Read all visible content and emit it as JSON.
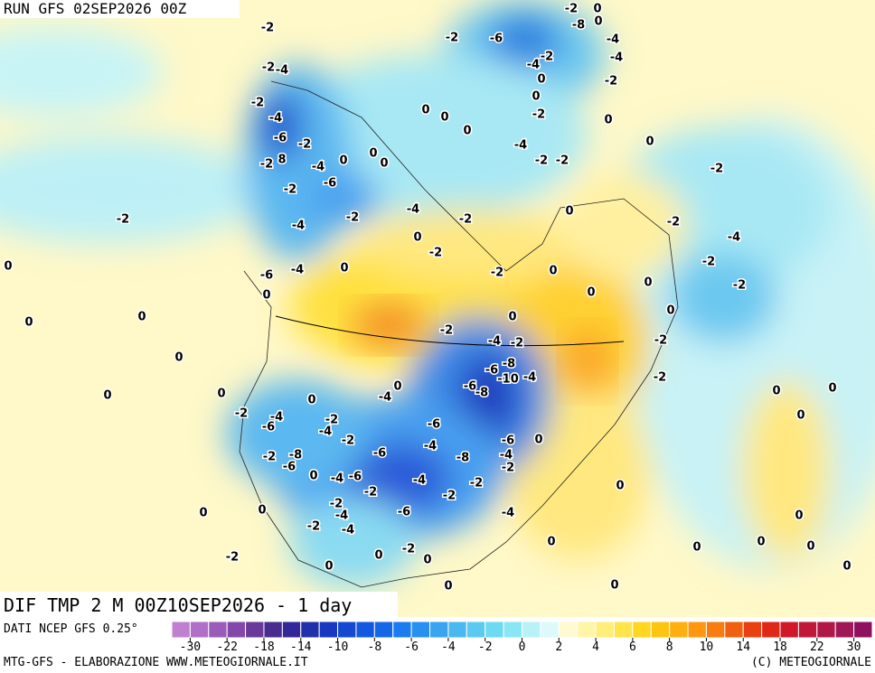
{
  "header": {
    "run": "RUN GFS 02SEP2026 00Z"
  },
  "map": {
    "title": "DIF TMP 2 M 00Z10SEP2026 - 1 day",
    "labels": [
      -2,
      -2,
      -4,
      -2,
      -4,
      -6,
      -2,
      8,
      -2,
      -4,
      -6,
      -2,
      -2,
      -4,
      -2,
      -4,
      -6,
      0,
      0,
      0,
      0,
      0,
      0,
      0,
      0,
      -4,
      -2,
      0,
      -2,
      -2,
      0,
      0,
      0,
      -2,
      -4,
      -2,
      -6,
      -8,
      -10,
      -4,
      -6,
      -8,
      -4,
      0,
      0,
      -2,
      -4,
      -6,
      -2,
      -4,
      -2,
      -6,
      -4,
      -6,
      -8,
      -4,
      -2,
      -2,
      -8,
      -6,
      -6,
      -4,
      -6,
      0,
      -2,
      -4,
      -2,
      -2,
      -2,
      -4,
      -6,
      -4,
      -2,
      -4,
      0,
      0,
      -2,
      0,
      0,
      -2,
      0,
      0,
      0,
      0,
      0,
      0,
      0,
      0,
      0,
      0,
      0,
      0,
      0,
      0,
      -2,
      -2,
      0,
      0,
      -2,
      -4,
      -2,
      -2,
      -2,
      0,
      0,
      -2,
      -4,
      -2,
      -2,
      -2,
      -6,
      -2,
      -4,
      0,
      0,
      0,
      -2,
      -4,
      -4,
      0,
      -8,
      -2,
      0,
      0,
      0,
      0,
      0,
      0,
      0
    ]
  },
  "legend": {
    "source": "DATI NCEP GFS 0.25°",
    "colors": [
      "#c080d0",
      "#b070c8",
      "#9a5cb8",
      "#8448a8",
      "#6a3a9a",
      "#4a2c90",
      "#32289a",
      "#2030a8",
      "#1838c0",
      "#1448d0",
      "#1458e0",
      "#1468e8",
      "#1a7cf0",
      "#2890f0",
      "#3aa4f0",
      "#4cb8f0",
      "#5ccaf0",
      "#6cdaf0",
      "#8ae6f2",
      "#b8f2f6",
      "#dcfafc",
      "#fffad2",
      "#fff5a8",
      "#ffee7a",
      "#ffe44a",
      "#ffd620",
      "#ffc410",
      "#ffb010",
      "#ff9810",
      "#f87c10",
      "#f06010",
      "#e84010",
      "#e02818",
      "#d01828",
      "#c01838",
      "#b01848",
      "#a01858",
      "#901060"
    ],
    "ticks": [
      -30,
      -22,
      -18,
      -14,
      -10,
      -8,
      -6,
      -4,
      -2,
      0,
      2,
      4,
      6,
      8,
      10,
      14,
      18,
      22,
      30
    ]
  },
  "footer": {
    "left": "MTG-GFS - ELABORAZIONE WWW.METEOGIORNALE.IT",
    "right": "(C) METEOGIORNALE"
  }
}
